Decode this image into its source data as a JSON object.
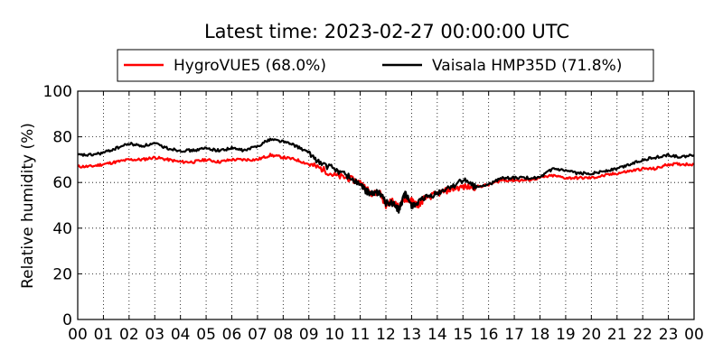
{
  "chart_data": {
    "type": "line",
    "title": "Latest time: 2023-02-27 00:00:00 UTC",
    "xlabel": "",
    "ylabel": "Relative humidity (%)",
    "ylim": [
      0,
      100
    ],
    "yticks": [
      0,
      20,
      40,
      60,
      80,
      100
    ],
    "xlim": [
      0,
      24
    ],
    "xtick_labels": [
      "00",
      "01",
      "02",
      "03",
      "04",
      "05",
      "06",
      "07",
      "08",
      "09",
      "10",
      "11",
      "12",
      "13",
      "14",
      "15",
      "16",
      "17",
      "18",
      "19",
      "20",
      "21",
      "22",
      "23",
      "00"
    ],
    "grid": true,
    "legend_position": "top",
    "x_unit": "hour (UTC)",
    "series": [
      {
        "name": "HygroVUE5 (68.0%)",
        "color": "#ff0000",
        "x": [
          0,
          0.5,
          1,
          1.5,
          2,
          2.5,
          3,
          3.5,
          4,
          4.5,
          5,
          5.5,
          6,
          6.5,
          7,
          7.5,
          8,
          8.5,
          9,
          9.5,
          10,
          10.5,
          11,
          11.25,
          11.5,
          11.75,
          12,
          12.25,
          12.5,
          12.75,
          13,
          13.25,
          13.5,
          14,
          14.5,
          15,
          15.5,
          16,
          16.5,
          17,
          17.5,
          18,
          18.5,
          19,
          19.5,
          20,
          20.5,
          21,
          21.5,
          22,
          22.5,
          23,
          23.5,
          24
        ],
        "y": [
          67,
          67,
          68,
          69,
          70,
          70,
          71,
          70,
          69,
          69,
          70,
          69,
          70,
          70,
          70,
          72,
          71,
          70,
          68,
          66,
          63,
          62,
          60,
          57,
          55,
          56,
          50,
          52,
          49,
          53,
          52,
          50,
          53,
          55,
          57,
          58,
          58,
          59,
          61,
          61,
          61,
          62,
          63,
          62,
          62,
          62,
          63,
          64,
          65,
          66,
          66,
          68,
          68,
          68
        ]
      },
      {
        "name": "Vaisala HMP35D (71.8%)",
        "color": "#000000",
        "x": [
          0,
          0.5,
          1,
          1.5,
          2,
          2.5,
          3,
          3.5,
          4,
          4.5,
          5,
          5.5,
          6,
          6.5,
          7,
          7.5,
          8,
          8.5,
          9,
          9.5,
          10,
          10.5,
          11,
          11.25,
          11.5,
          11.75,
          12,
          12.25,
          12.5,
          12.75,
          13,
          13.25,
          13.5,
          14,
          14.5,
          15,
          15.5,
          16,
          16.5,
          17,
          17.5,
          18,
          18.5,
          19,
          19.5,
          20,
          20.5,
          21,
          21.5,
          22,
          22.5,
          23,
          23.5,
          24
        ],
        "y": [
          72,
          72,
          73,
          75,
          77,
          76,
          77,
          75,
          74,
          74,
          75,
          74,
          75,
          74,
          76,
          79,
          78,
          76,
          73,
          68,
          66,
          63,
          59,
          56,
          55,
          56,
          51,
          51,
          48,
          55,
          50,
          51,
          53,
          55,
          58,
          61,
          58,
          59,
          62,
          62,
          62,
          62,
          66,
          65,
          64,
          64,
          65,
          66,
          68,
          70,
          71,
          72,
          71,
          72
        ]
      }
    ]
  }
}
